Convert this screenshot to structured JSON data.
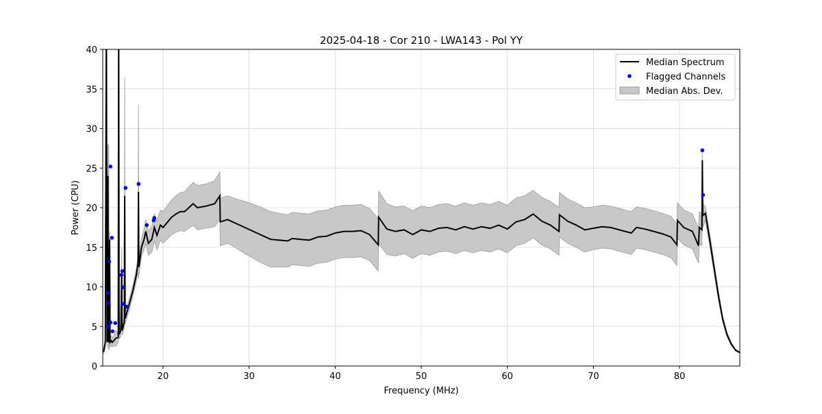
{
  "chart_data": {
    "type": "line",
    "title": "2025-04-18 - Cor 210 - LWA143 - Pol YY",
    "xlabel": "Frequency (MHz)",
    "ylabel": "Power (CPU)",
    "xlim": [
      13.0,
      87.0
    ],
    "ylim": [
      0,
      40
    ],
    "xticks": [
      20,
      30,
      40,
      50,
      60,
      70,
      80
    ],
    "yticks": [
      0,
      5,
      10,
      15,
      20,
      25,
      30,
      35,
      40
    ],
    "grid": true,
    "legend_position": "top-right",
    "legend": [
      "Median Spectrum",
      "Flagged Channels",
      "Median Abs. Dev."
    ],
    "colors": {
      "median": "#000000",
      "flagged": "#0000ff",
      "mad": "#c8c8c8"
    },
    "median_spectrum": [
      [
        13.1,
        1.8,
        0.3
      ],
      [
        13.3,
        3,
        0.6
      ],
      [
        13.42,
        45,
        0.6
      ],
      [
        13.5,
        3,
        0.6
      ],
      [
        13.6,
        24,
        4
      ],
      [
        13.65,
        3,
        0.6
      ],
      [
        13.7,
        15,
        13
      ],
      [
        13.75,
        3,
        0.6
      ],
      [
        13.8,
        16,
        1
      ],
      [
        13.85,
        3,
        0.6
      ],
      [
        14.0,
        3.2,
        0.6
      ],
      [
        14.1,
        3,
        0.6
      ],
      [
        14.3,
        3.2,
        0.6
      ],
      [
        14.5,
        3.5,
        1
      ],
      [
        14.8,
        3.6,
        0.6
      ],
      [
        14.85,
        45,
        0.6
      ],
      [
        14.9,
        4,
        0.6
      ],
      [
        15.1,
        4.5,
        0.7
      ],
      [
        15.2,
        12,
        3
      ],
      [
        15.25,
        4.5,
        0.6
      ],
      [
        15.5,
        5.5,
        0.7
      ],
      [
        15.55,
        21.5,
        15
      ],
      [
        15.6,
        6,
        0.7
      ],
      [
        16.0,
        7.5,
        0.7
      ],
      [
        16.5,
        9.5,
        0.7
      ],
      [
        16.9,
        11.5,
        0.8
      ],
      [
        17.1,
        13,
        1
      ],
      [
        17.15,
        22,
        11
      ],
      [
        17.2,
        12.5,
        1
      ],
      [
        17.5,
        15,
        1.2
      ],
      [
        17.8,
        16,
        1.3
      ],
      [
        18.0,
        17,
        1.5
      ],
      [
        18.3,
        15.5,
        1.5
      ],
      [
        18.7,
        16,
        1.6
      ],
      [
        19.0,
        17.5,
        1.7
      ],
      [
        19.3,
        16.5,
        1.8
      ],
      [
        19.7,
        17.8,
        1.9
      ],
      [
        20,
        17.5,
        2
      ],
      [
        21,
        18.8,
        2.2
      ],
      [
        21.5,
        19.2,
        2.3
      ],
      [
        22,
        19.5,
        2.4
      ],
      [
        22.5,
        19.5,
        2.5
      ],
      [
        23,
        20,
        2.6
      ],
      [
        23.5,
        20.5,
        2.7
      ],
      [
        24,
        20,
        2.8
      ],
      [
        25,
        20.2,
        2.8
      ],
      [
        26,
        20.5,
        2.9
      ],
      [
        26.6,
        21.5,
        3
      ],
      [
        26.65,
        18.2,
        3
      ],
      [
        27.5,
        18.5,
        3
      ],
      [
        28.5,
        18,
        3.1
      ],
      [
        29.5,
        17.5,
        3.3
      ],
      [
        30.5,
        17,
        3.4
      ],
      [
        31.5,
        16.5,
        3.5
      ],
      [
        32.5,
        16,
        3.5
      ],
      [
        33.5,
        15.9,
        3.4
      ],
      [
        34.5,
        15.8,
        3.3
      ],
      [
        35,
        16.1,
        3.3
      ],
      [
        36,
        16,
        3.3
      ],
      [
        37,
        15.9,
        3.3
      ],
      [
        38,
        16.3,
        3.3
      ],
      [
        39,
        16.4,
        3.3
      ],
      [
        40,
        16.8,
        3.3
      ],
      [
        41,
        17,
        3.3
      ],
      [
        42,
        17,
        3.3
      ],
      [
        43,
        17.1,
        3.3
      ],
      [
        44,
        16.6,
        3.3
      ],
      [
        45,
        15.3,
        3.3
      ],
      [
        45.05,
        18.8,
        3.3
      ],
      [
        46,
        17.3,
        3.2
      ],
      [
        47,
        17,
        3.1
      ],
      [
        48,
        17.2,
        3
      ],
      [
        49,
        16.6,
        3
      ],
      [
        50,
        17.2,
        3
      ],
      [
        51,
        17,
        3
      ],
      [
        52,
        17.4,
        3
      ],
      [
        53,
        17.5,
        3
      ],
      [
        54,
        17.2,
        3
      ],
      [
        55,
        17.6,
        3
      ],
      [
        56,
        17.3,
        3
      ],
      [
        57,
        17.6,
        3
      ],
      [
        58,
        17.4,
        3
      ],
      [
        59,
        17.8,
        3
      ],
      [
        60,
        17.3,
        3
      ],
      [
        61,
        18.2,
        3
      ],
      [
        62,
        18.5,
        3
      ],
      [
        63,
        19.2,
        3
      ],
      [
        64,
        18.3,
        3
      ],
      [
        65,
        17.8,
        3
      ],
      [
        66,
        17,
        3
      ],
      [
        66.05,
        19.1,
        2.8
      ],
      [
        67,
        18.3,
        2.8
      ],
      [
        68,
        17.8,
        2.8
      ],
      [
        69,
        17.2,
        2.8
      ],
      [
        70,
        17.4,
        2.7
      ],
      [
        71,
        17.6,
        2.7
      ],
      [
        72,
        17.5,
        2.7
      ],
      [
        73,
        17.2,
        2.7
      ],
      [
        74.4,
        16.8,
        2.7
      ],
      [
        75,
        17.5,
        2.6
      ],
      [
        76,
        17.3,
        2.6
      ],
      [
        77,
        17,
        2.6
      ],
      [
        78,
        16.7,
        2.6
      ],
      [
        79,
        16.3,
        2.6
      ],
      [
        79.7,
        15.3,
        2.6
      ],
      [
        79.75,
        18.4,
        2.2
      ],
      [
        80.5,
        17.5,
        2.2
      ],
      [
        81.5,
        17,
        2.2
      ],
      [
        82.2,
        15.2,
        2.2
      ],
      [
        82.3,
        17.5,
        2
      ],
      [
        82.6,
        17.2,
        2
      ],
      [
        82.65,
        26,
        1
      ],
      [
        82.7,
        19,
        1.5
      ],
      [
        83,
        19.3,
        0.9
      ],
      [
        83.5,
        16,
        0.8
      ],
      [
        84,
        12.5,
        0.7
      ],
      [
        84.5,
        9,
        0.6
      ],
      [
        85,
        6,
        0.4
      ],
      [
        85.5,
        4,
        0.3
      ],
      [
        86,
        2.8,
        0.2
      ],
      [
        86.5,
        2,
        0.1
      ],
      [
        87,
        1.7,
        0.1
      ]
    ],
    "flagged_channels": [
      [
        13.9,
        25.2
      ],
      [
        14.06,
        16.2
      ],
      [
        13.74,
        13.2
      ],
      [
        13.66,
        9.24
      ],
      [
        13.66,
        7.94
      ],
      [
        13.58,
        4.94
      ],
      [
        13.9,
        5.5
      ],
      [
        14.14,
        4.39
      ],
      [
        14.45,
        5.43
      ],
      [
        15.28,
        12.0
      ],
      [
        15.17,
        11.5
      ],
      [
        15.36,
        9.93
      ],
      [
        15.28,
        7.85
      ],
      [
        15.81,
        7.5
      ],
      [
        15.65,
        22.5
      ],
      [
        17.16,
        23.0
      ],
      [
        18.11,
        17.8
      ],
      [
        18.91,
        18.4
      ],
      [
        18.99,
        18.7
      ],
      [
        82.65,
        27.25
      ],
      [
        82.73,
        21.6
      ]
    ]
  }
}
